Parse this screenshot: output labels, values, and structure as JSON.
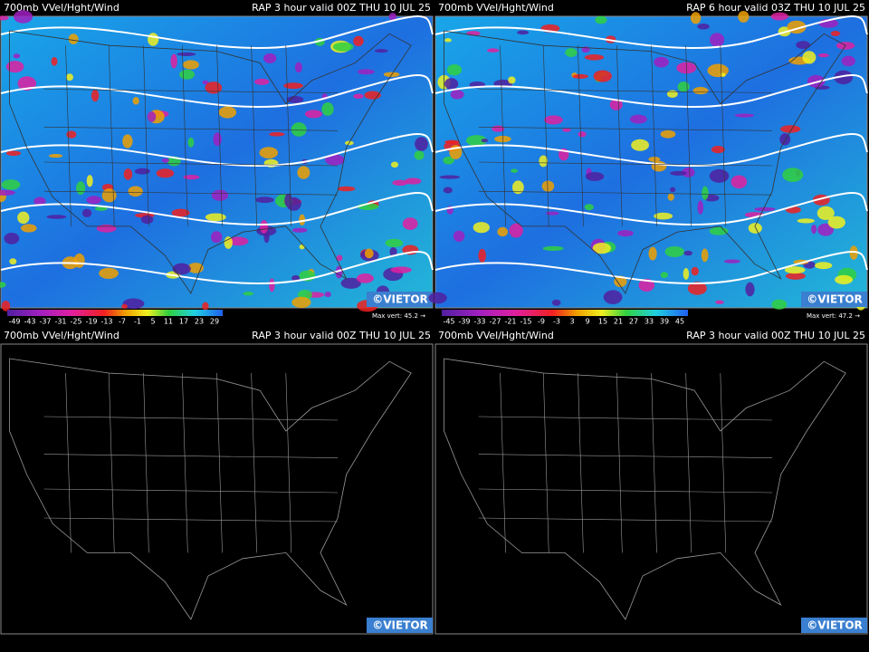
{
  "panels": [
    {
      "title_left": "700mb VVel/Hght/Wind",
      "title_right": "RAP 3 hour valid 00Z THU 10 JUL 25",
      "watermark": "©VIETOR",
      "colorbar_labels": [
        "-49",
        "-43",
        "-37",
        "-31",
        "-25",
        "-19",
        "-13",
        "-7",
        "-1",
        "5",
        "11",
        "17",
        "23",
        "29"
      ],
      "max_vert": "Max vert: 45.2 →"
    },
    {
      "title_left": "700mb VVel/Hght/Wind",
      "title_right": "RAP 6 hour valid 03Z THU 10 JUL 25",
      "watermark": "©VIETOR",
      "colorbar_labels": [
        "-45",
        "-39",
        "-33",
        "-27",
        "-21",
        "-15",
        "-9",
        "-3",
        "3",
        "9",
        "15",
        "21",
        "27",
        "33",
        "39",
        "45"
      ],
      "max_vert": "Max vert: 47.2 →"
    },
    {
      "title_left": "700mb VVel/Hght/Wind",
      "title_right": "RAP 3 hour valid 00Z THU 10 JUL 25",
      "watermark": "©VIETOR"
    },
    {
      "title_left": "700mb VVel/Hght/Wind",
      "title_right": "RAP 3 hour valid 00Z THU 10 JUL 25",
      "watermark": "©VIETOR"
    }
  ]
}
